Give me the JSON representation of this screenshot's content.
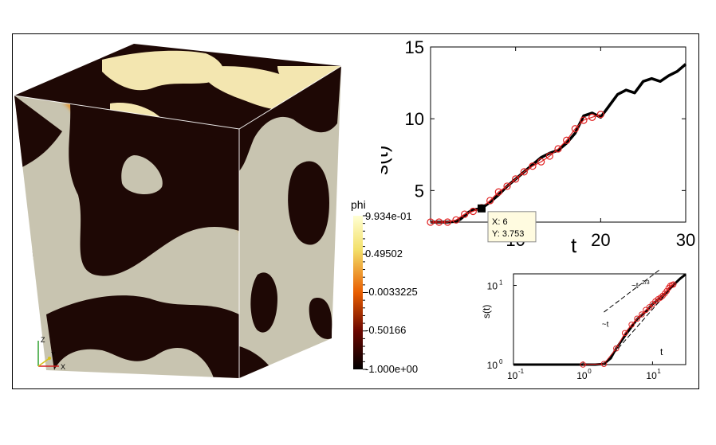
{
  "colorbar": {
    "title": "phi",
    "labels": [
      "9.934e-01",
      "0.49502",
      "-0.0033225",
      "-0.50166",
      "-1.000e+00"
    ],
    "colors": [
      "#ffffd4",
      "#f3e06a",
      "#e85d00",
      "#6b0700",
      "#000000"
    ]
  },
  "axes_triad": {
    "z": "Z",
    "y": "Y",
    "x": "X"
  },
  "chart_data": [
    {
      "type": "line",
      "title": "",
      "xlabel": "t",
      "ylabel": "s(t)",
      "xlim": [
        0,
        30
      ],
      "ylim": [
        2.8,
        15
      ],
      "xticks": [
        10,
        20,
        30
      ],
      "yticks": [
        5,
        10,
        15
      ],
      "grid": false,
      "series": [
        {
          "style": "black-solid",
          "x": [
            0,
            1,
            2,
            3,
            3.5,
            4,
            4.5,
            5,
            5.5,
            6,
            7,
            8,
            9,
            10,
            11,
            12,
            13,
            14,
            15,
            16,
            17,
            18,
            19,
            20,
            21,
            22,
            23,
            24,
            25,
            26,
            27,
            28,
            29,
            30
          ],
          "y": [
            2.8,
            2.8,
            2.8,
            2.85,
            3.0,
            3.25,
            3.5,
            3.65,
            3.7,
            3.753,
            4.2,
            4.7,
            5.3,
            5.8,
            6.3,
            6.8,
            7.3,
            7.6,
            7.8,
            8.3,
            9.0,
            10.2,
            10.4,
            10.1,
            10.9,
            11.7,
            12.0,
            11.8,
            12.6,
            12.8,
            12.6,
            13.0,
            13.3,
            13.8
          ]
        },
        {
          "style": "red-circles",
          "x": [
            0,
            1,
            2,
            3,
            4,
            5,
            6,
            7,
            8,
            9,
            10,
            11,
            12,
            13,
            14,
            15,
            16,
            17,
            18,
            19,
            20
          ],
          "y": [
            2.8,
            2.8,
            2.8,
            2.95,
            3.35,
            3.55,
            3.8,
            4.3,
            4.9,
            5.3,
            5.8,
            6.3,
            6.7,
            7.0,
            7.4,
            7.9,
            8.5,
            9.3,
            9.9,
            10.1,
            10.3
          ]
        }
      ],
      "datatip": {
        "x": 6,
        "y": 3.753,
        "x_text": "X: 6",
        "y_text": "Y: 3.753"
      }
    },
    {
      "type": "line",
      "title": "",
      "xlabel": "t",
      "ylabel": "s(t)",
      "xscale": "log",
      "yscale": "log",
      "xlim": [
        0.1,
        30
      ],
      "ylim": [
        1,
        14
      ],
      "xticks": [
        {
          "base": "10",
          "exp": "-1"
        },
        {
          "base": "10",
          "exp": "0"
        },
        {
          "base": "10",
          "exp": "1"
        }
      ],
      "yticks": [
        {
          "base": "10",
          "exp": "0"
        },
        {
          "base": "10",
          "exp": "1"
        }
      ],
      "series": [
        {
          "style": "black-solid",
          "x": [
            0.1,
            0.5,
            1,
            1.5,
            2,
            2.5,
            3,
            4,
            5,
            6,
            8,
            10,
            15,
            20,
            25,
            30
          ],
          "y": [
            1,
            1,
            1,
            1,
            1.02,
            1.2,
            1.6,
            2.3,
            3.0,
            3.75,
            4.7,
            5.8,
            7.8,
            10.1,
            12.2,
            13.8
          ]
        },
        {
          "style": "red-circles",
          "x": [
            1,
            2,
            3,
            4,
            5,
            6,
            7,
            8,
            9,
            10,
            11,
            12,
            13,
            14,
            15,
            16,
            17,
            18,
            19,
            20
          ],
          "y": [
            1,
            1.02,
            1.6,
            2.5,
            3.2,
            3.8,
            4.3,
            4.9,
            5.3,
            5.8,
            6.3,
            6.7,
            7.0,
            7.4,
            7.9,
            8.5,
            9.3,
            9.9,
            10.1,
            10.3
          ]
        },
        {
          "style": "dashed-guide",
          "x": [
            2,
            20
          ],
          "y": [
            1,
            10
          ]
        },
        {
          "style": "dashed-guide",
          "x": [
            2,
            30
          ],
          "y": [
            4.6,
            28
          ]
        }
      ],
      "annotations": [
        {
          "label": "~t",
          "x": 3.0,
          "y": 3.0
        },
        {
          "label": "~t",
          "sup": "2/3",
          "x": 8.0,
          "y": 9.2
        }
      ]
    }
  ]
}
